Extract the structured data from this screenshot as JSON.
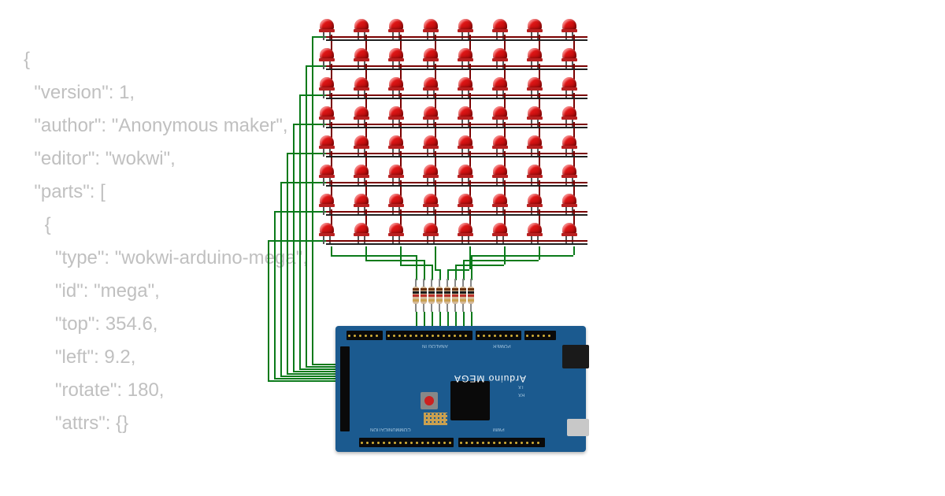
{
  "code_overlay": "{\n  \"version\": 1,\n  \"author\": \"Anonymous maker\",\n  \"editor\": \"wokwi\",\n  \"parts\": [\n    {\n      \"type\": \"wokwi-arduino-mega\",\n      \"id\": \"mega\",\n      \"top\": 354.6,\n      \"left\": 9.2,\n      \"rotate\": 180,\n      \"attrs\": {}",
  "code_color": "#c0c0c0",
  "diagram": {
    "led_matrix": {
      "rows": 8,
      "cols": 8,
      "col_spacing": 44,
      "row_spacing": 37,
      "led_color": "#dd1515",
      "led_highlight": "#ff8080",
      "row_wire_color": "#7a0000",
      "row_wire_black": "#202020"
    },
    "wires": {
      "green": "#0a7a1a",
      "row_left_offsets": [
        0,
        8,
        16,
        24,
        32,
        40,
        48,
        56
      ],
      "col_bottom_offsets": [
        0,
        6,
        12,
        18,
        24,
        30,
        36,
        42
      ]
    },
    "resistors": {
      "count": 8,
      "spacing": 10,
      "body_color": "#d4b896",
      "bands": [
        "#6b3410",
        "#1a1a1a",
        "#b8302a",
        "#c9a050"
      ]
    },
    "arduino": {
      "board_color": "#1b5a8f",
      "text_color": "#ffffff",
      "label_main": "Arduino MEGA",
      "label_analog": "ANALOG IN",
      "label_power": "POWER",
      "label_comm": "COMMUNICATION",
      "label_pwm": "PWM",
      "usb_color": "#1a1a1a",
      "jack_color": "#c8c8c8",
      "chip_color": "#0a0a0a",
      "header_color": "#0a0a0a"
    }
  }
}
